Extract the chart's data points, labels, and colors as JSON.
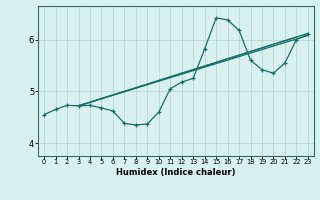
{
  "title": "",
  "xlabel": "Humidex (Indice chaleur)",
  "ylabel": "",
  "bg_color": "#d9f0f0",
  "grid_color": "#b8d8d8",
  "line_color": "#1a6e6a",
  "xlim": [
    -0.5,
    23.5
  ],
  "ylim": [
    3.75,
    6.65
  ],
  "yticks": [
    4,
    5,
    6
  ],
  "xticks": [
    0,
    1,
    2,
    3,
    4,
    5,
    6,
    7,
    8,
    9,
    10,
    11,
    12,
    13,
    14,
    15,
    16,
    17,
    18,
    19,
    20,
    21,
    22,
    23
  ],
  "curve": {
    "x": [
      0,
      1,
      2,
      3,
      4,
      5,
      6,
      7,
      8,
      9,
      10,
      11,
      12,
      13,
      14,
      15,
      16,
      17,
      18,
      19,
      20,
      21,
      22,
      23
    ],
    "y": [
      4.55,
      4.65,
      4.73,
      4.72,
      4.73,
      4.68,
      4.62,
      4.38,
      4.35,
      4.37,
      4.6,
      5.05,
      5.18,
      5.25,
      5.82,
      6.42,
      6.38,
      6.18,
      5.6,
      5.42,
      5.35,
      5.55,
      6.0,
      6.1
    ]
  },
  "straight_lines": [
    {
      "x": [
        3,
        22
      ],
      "y": [
        4.72,
        6.05
      ]
    },
    {
      "x": [
        3,
        23
      ],
      "y": [
        4.72,
        6.08
      ]
    },
    {
      "x": [
        3,
        23
      ],
      "y": [
        4.72,
        6.12
      ]
    }
  ]
}
